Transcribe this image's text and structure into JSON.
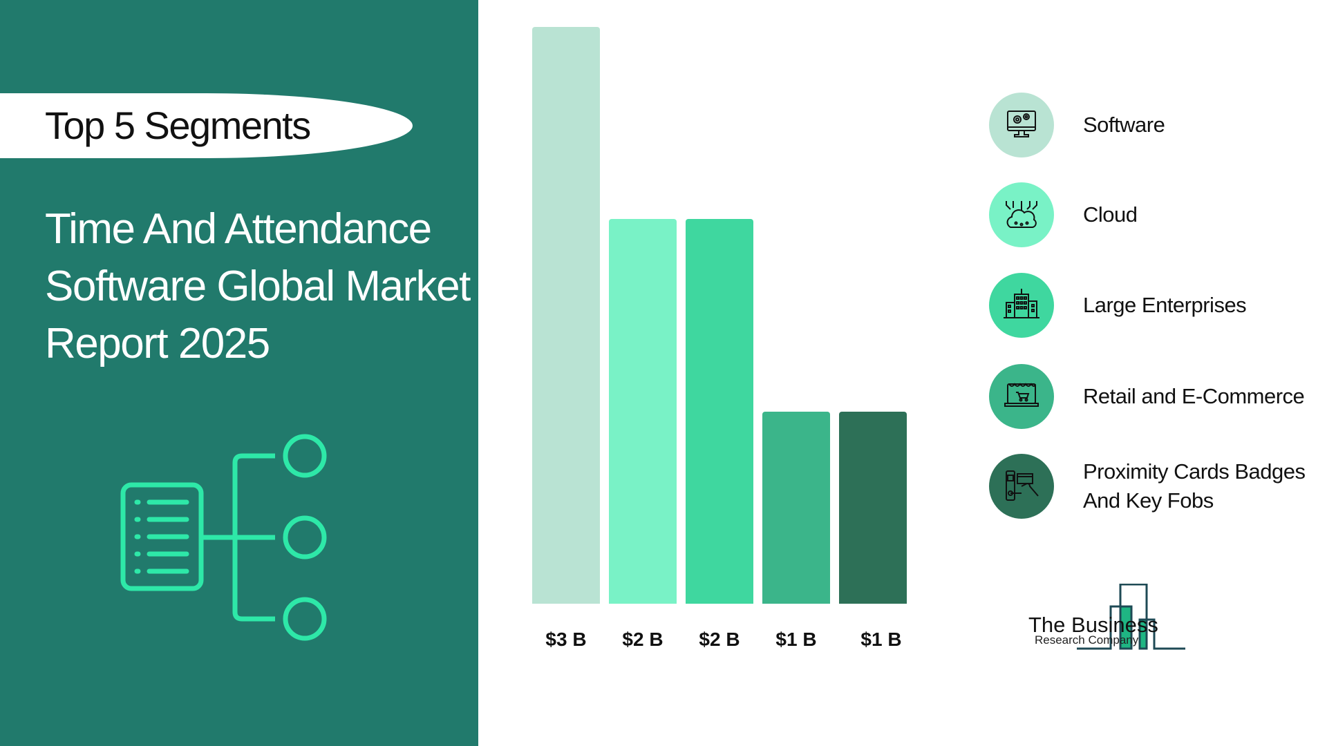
{
  "badge": "Top 5 Segments",
  "title": "Time And Attendance Software Global Market Report 2025",
  "logo": {
    "line1": "The Business",
    "line2": "Research Company"
  },
  "colors": {
    "panel": "#217a6c",
    "pill": "#ffffff",
    "logo_stroke": "#1e4a55",
    "logo_fill": "#1fb583",
    "deco": "#2ee8a8"
  },
  "chart_data": {
    "type": "bar",
    "categories": [
      "Software",
      "Cloud",
      "Large Enterprises",
      "Retail and E-Commerce",
      "Proximity Cards Badges And Key Fobs"
    ],
    "values": [
      3,
      2,
      2,
      1,
      1
    ],
    "unit": "$ Billion",
    "data_labels": [
      "$3 B",
      "$2 B",
      "$2 B",
      "$1 B",
      "$1 B"
    ],
    "colors": [
      "#b9e3d3",
      "#79f2c6",
      "#3fd79f",
      "#3bb58a",
      "#2d7057"
    ],
    "legend_placement": "right",
    "grid": false
  },
  "legend": [
    {
      "label": "Software",
      "icon": "monitor-gears-icon",
      "color": "#b9e3d3"
    },
    {
      "label": "Cloud",
      "icon": "cloud-network-icon",
      "color": "#79f2c6"
    },
    {
      "label": "Large Enterprises",
      "icon": "office-building-icon",
      "color": "#3fd79f"
    },
    {
      "label": "Retail and E-Commerce",
      "icon": "laptop-shop-cart-icon",
      "color": "#3bb58a"
    },
    {
      "label": "Proximity Cards Badges And Key Fobs",
      "icon": "card-reader-door-icon",
      "color": "#2d7057"
    }
  ]
}
